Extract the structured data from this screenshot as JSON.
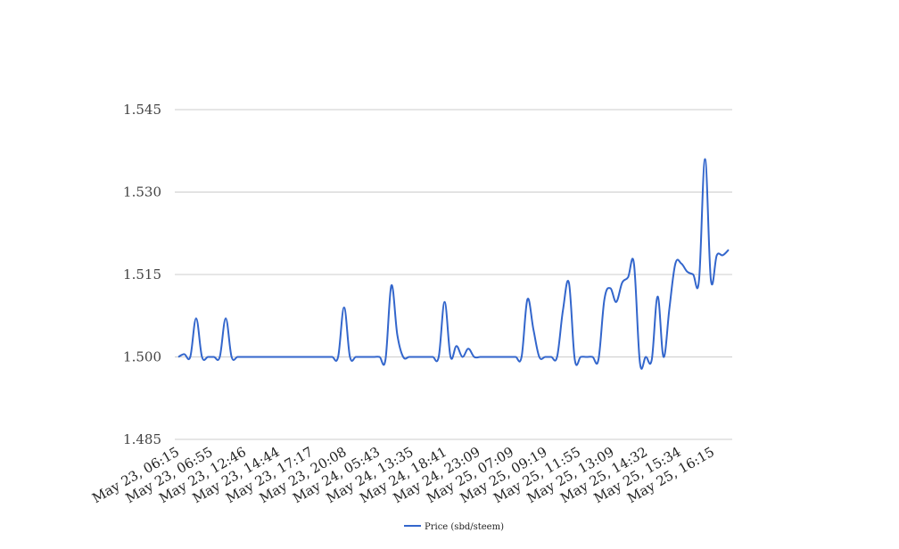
{
  "chart_data": {
    "type": "line",
    "title": "",
    "xlabel": "",
    "ylabel": "",
    "ylim": [
      1.485,
      1.545
    ],
    "y_ticks": [
      "1.485",
      "1.500",
      "1.515",
      "1.530",
      "1.545"
    ],
    "y_tick_values": [
      1.485,
      1.5,
      1.515,
      1.53,
      1.545
    ],
    "grid": true,
    "legend_position": "bottom-center",
    "x_tick_labels": [
      "May 23, 06:15",
      "May 23, 06:55",
      "May 23, 12:46",
      "May 23, 14:44",
      "May 23, 17:17",
      "May 23, 20:08",
      "May 24, 05:43",
      "May 24, 13:35",
      "May 24, 18:41",
      "May 24, 23:09",
      "May 25, 07:09",
      "May 25, 09:19",
      "May 25, 11:55",
      "May 25, 13:09",
      "May 25, 14:32",
      "May 25, 15:34",
      "May 25, 16:15"
    ],
    "series": [
      {
        "name": "Price (sbd/steem)",
        "color": "#3366cc",
        "values": [
          1.5,
          1.5005,
          1.5,
          1.507,
          1.5,
          1.5,
          1.5,
          1.5,
          1.507,
          1.5,
          1.5,
          1.5,
          1.5,
          1.5,
          1.5,
          1.5,
          1.5,
          1.5,
          1.5,
          1.5,
          1.5,
          1.5,
          1.5,
          1.5,
          1.5,
          1.5,
          1.5,
          1.5,
          1.509,
          1.5,
          1.5,
          1.5,
          1.5,
          1.5,
          1.5,
          1.4995,
          1.513,
          1.504,
          1.5,
          1.5,
          1.5,
          1.5,
          1.5,
          1.5,
          1.5,
          1.51,
          1.5,
          1.502,
          1.5,
          1.5015,
          1.5,
          1.5,
          1.5,
          1.5,
          1.5,
          1.5,
          1.5,
          1.5,
          1.5,
          1.5105,
          1.505,
          1.5,
          1.5,
          1.5,
          1.5,
          1.5085,
          1.5135,
          1.4995,
          1.5,
          1.5,
          1.5,
          1.4995,
          1.5105,
          1.5125,
          1.51,
          1.5135,
          1.5145,
          1.517,
          1.499,
          1.5,
          1.4995,
          1.511,
          1.5,
          1.509,
          1.517,
          1.517,
          1.5155,
          1.515,
          1.514,
          1.536,
          1.514,
          1.5185,
          1.5185,
          1.5195
        ]
      }
    ]
  }
}
